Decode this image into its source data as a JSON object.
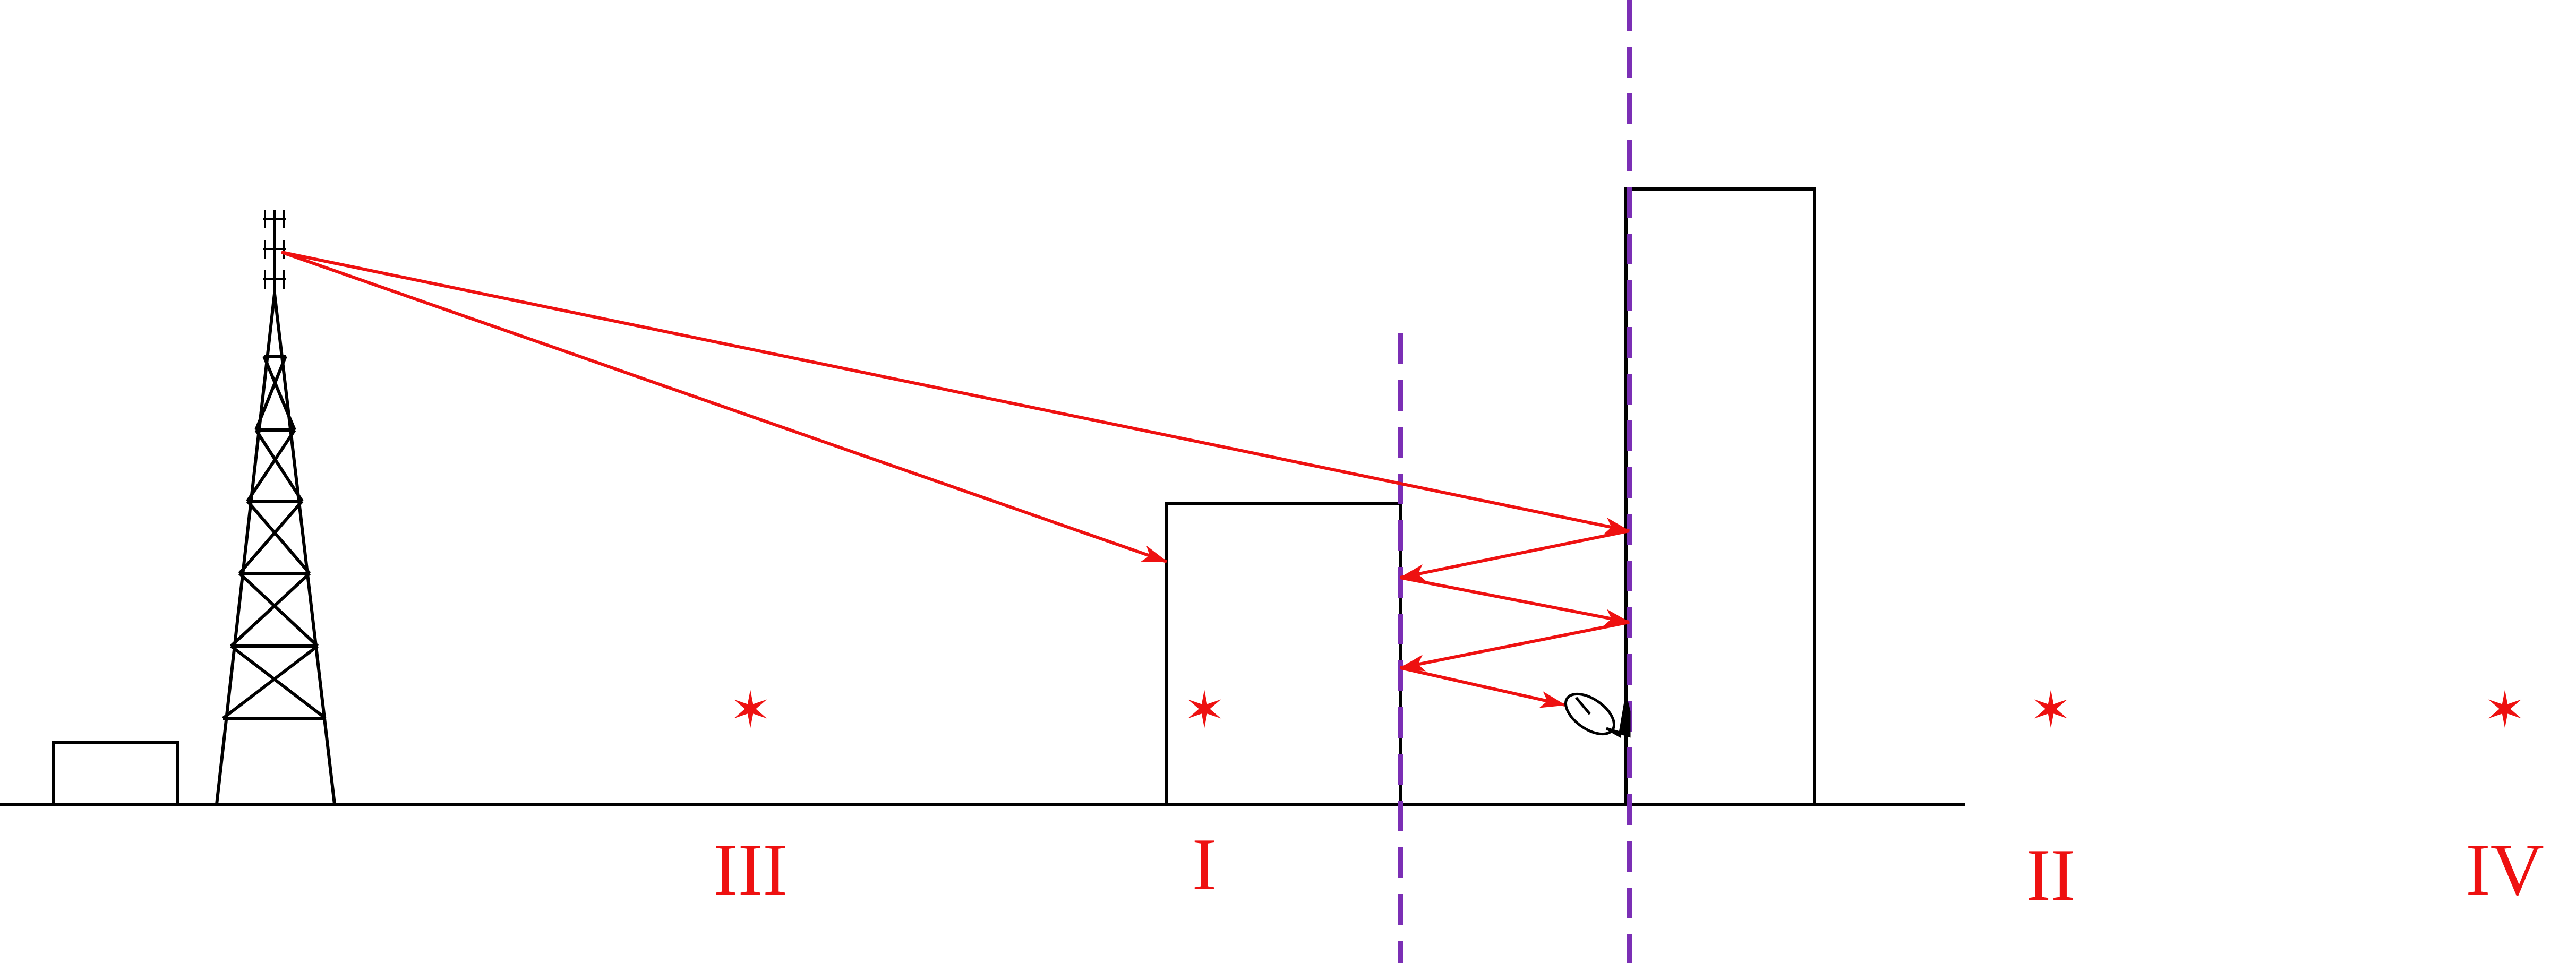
{
  "colors": {
    "structure": "#000000",
    "signal": "#ee1111",
    "boundary": "#7b2fb5",
    "label": "#ee1111"
  },
  "icons": {
    "tower": "cell-tower-icon",
    "receiver": "satellite-dish-icon",
    "marker": "six-point-star-icon"
  },
  "regions": [
    {
      "label": "III"
    },
    {
      "label": "I"
    },
    {
      "label": "II"
    },
    {
      "label": "IV"
    }
  ]
}
